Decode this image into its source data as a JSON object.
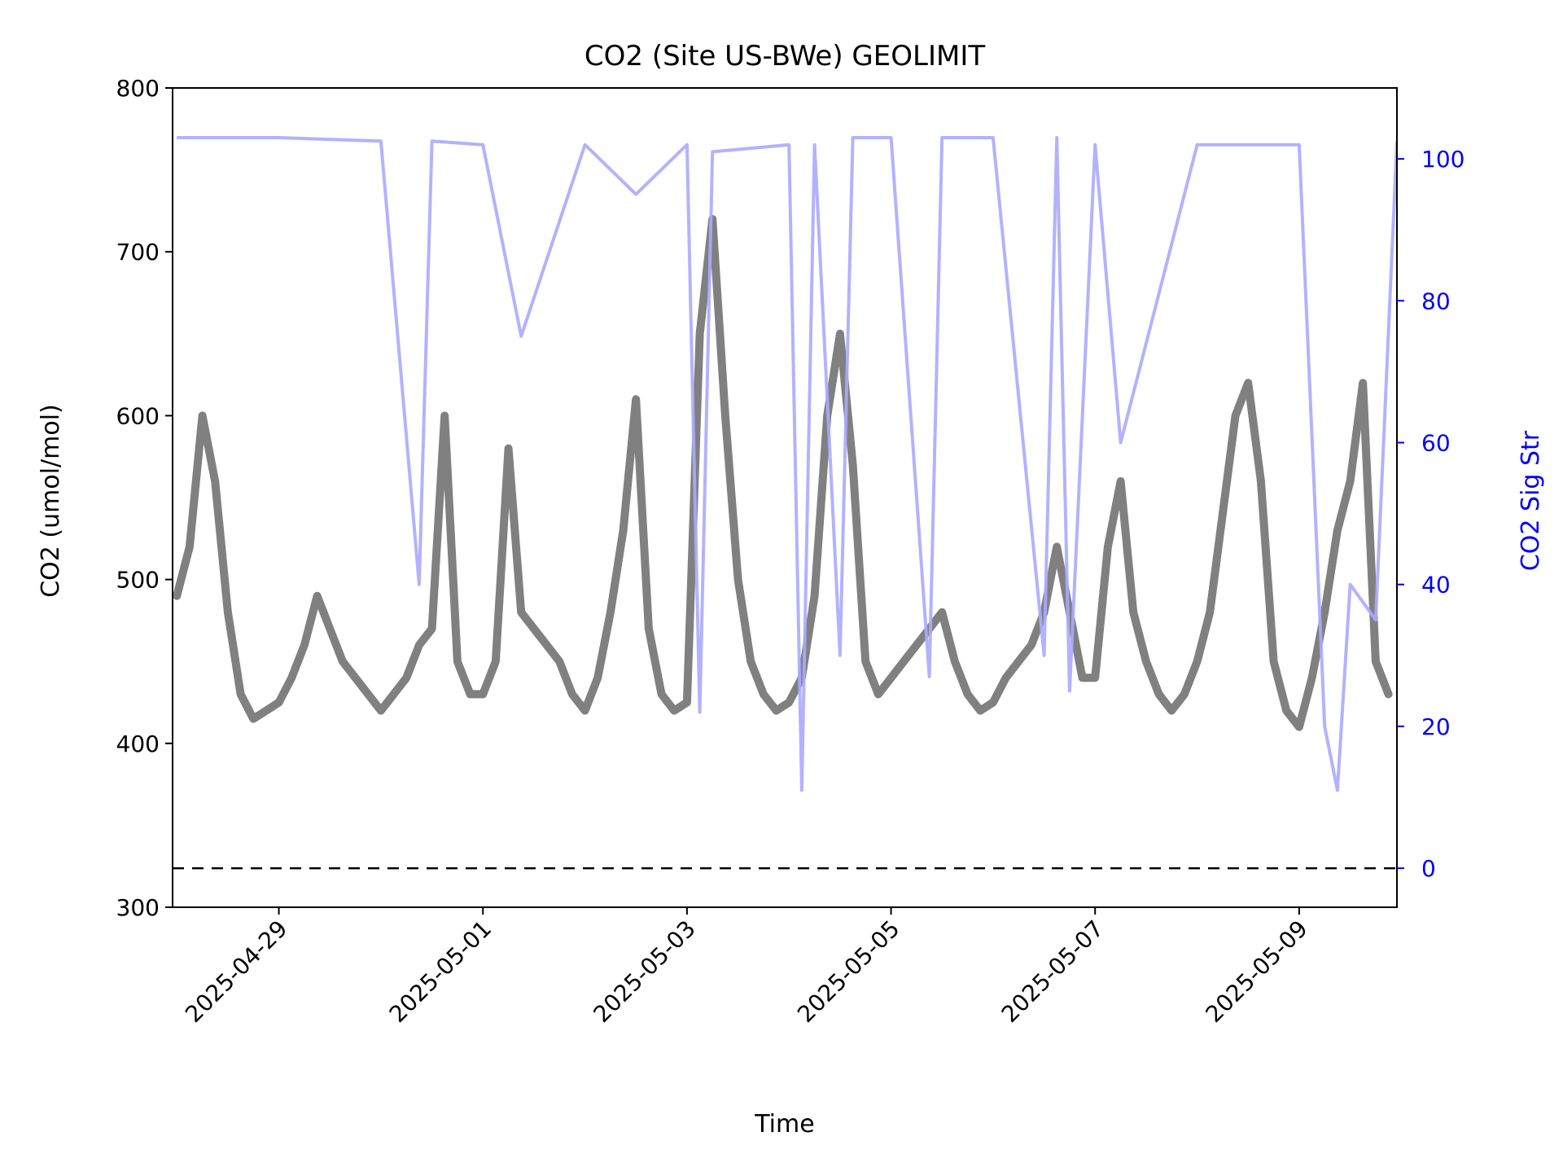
{
  "chart_data": {
    "type": "line",
    "title": "CO2 (Site US-BWe) GEOLIMIT",
    "xlabel": "Time",
    "ylabel": "CO2 (umol/mol)",
    "y2label": "CO2 Sig Str",
    "xlim": [
      "2025-04-27T23:00",
      "2025-05-09T23:00"
    ],
    "ylim": [
      300,
      800
    ],
    "y2lim": [
      -5.5,
      110
    ],
    "x_ticks": [
      "2025-04-29",
      "2025-05-01",
      "2025-05-03",
      "2025-05-05",
      "2025-05-07",
      "2025-05-09"
    ],
    "y_ticks": [
      300,
      400,
      500,
      600,
      700,
      800
    ],
    "y2_ticks": [
      0,
      20,
      40,
      60,
      80,
      100
    ],
    "grid": false,
    "legend": "none",
    "colors": {
      "co2": "#808080",
      "sig_str": "#aaaaff",
      "right_axis": "#0000ff",
      "zero_line": "#000000"
    },
    "reference_line": {
      "axis": "right",
      "y": 0,
      "style": "dashed"
    },
    "series": [
      {
        "axis": "left",
        "x": [
          "2025-04-28T00:00",
          "2025-04-28T03:00",
          "2025-04-28T06:00",
          "2025-04-28T09:00",
          "2025-04-28T12:00",
          "2025-04-28T15:00",
          "2025-04-28T18:00",
          "2025-04-28T21:00",
          "2025-04-29T00:00",
          "2025-04-29T03:00",
          "2025-04-29T06:00",
          "2025-04-29T09:00",
          "2025-04-29T12:00",
          "2025-04-29T15:00",
          "2025-04-29T18:00",
          "2025-04-29T21:00",
          "2025-04-30T00:00",
          "2025-04-30T03:00",
          "2025-04-30T06:00",
          "2025-04-30T09:00",
          "2025-04-30T12:00",
          "2025-04-30T15:00",
          "2025-04-30T18:00",
          "2025-04-30T21:00",
          "2025-05-01T00:00",
          "2025-05-01T03:00",
          "2025-05-01T06:00",
          "2025-05-01T09:00",
          "2025-05-01T12:00",
          "2025-05-01T15:00",
          "2025-05-01T18:00",
          "2025-05-01T21:00",
          "2025-05-02T00:00",
          "2025-05-02T03:00",
          "2025-05-02T06:00",
          "2025-05-02T09:00",
          "2025-05-02T12:00",
          "2025-05-02T15:00",
          "2025-05-02T18:00",
          "2025-05-02T21:00",
          "2025-05-03T00:00",
          "2025-05-03T03:00",
          "2025-05-03T06:00",
          "2025-05-03T09:00",
          "2025-05-03T12:00",
          "2025-05-03T15:00",
          "2025-05-03T18:00",
          "2025-05-03T21:00",
          "2025-05-04T00:00",
          "2025-05-04T03:00",
          "2025-05-04T06:00",
          "2025-05-04T09:00",
          "2025-05-04T12:00",
          "2025-05-04T15:00",
          "2025-05-04T18:00",
          "2025-05-04T21:00",
          "2025-05-05T00:00",
          "2025-05-05T03:00",
          "2025-05-05T06:00",
          "2025-05-05T09:00",
          "2025-05-05T12:00",
          "2025-05-05T15:00",
          "2025-05-05T18:00",
          "2025-05-05T21:00",
          "2025-05-06T00:00",
          "2025-05-06T03:00",
          "2025-05-06T06:00",
          "2025-05-06T09:00",
          "2025-05-06T12:00",
          "2025-05-06T15:00",
          "2025-05-06T18:00",
          "2025-05-06T21:00",
          "2025-05-07T00:00",
          "2025-05-07T03:00",
          "2025-05-07T06:00",
          "2025-05-07T09:00",
          "2025-05-07T12:00",
          "2025-05-07T15:00",
          "2025-05-07T18:00",
          "2025-05-07T21:00",
          "2025-05-08T00:00",
          "2025-05-08T03:00",
          "2025-05-08T06:00",
          "2025-05-08T09:00",
          "2025-05-08T12:00",
          "2025-05-08T15:00",
          "2025-05-08T18:00",
          "2025-05-08T21:00",
          "2025-05-09T00:00",
          "2025-05-09T03:00",
          "2025-05-09T06:00",
          "2025-05-09T09:00",
          "2025-05-09T12:00",
          "2025-05-09T15:00",
          "2025-05-09T18:00",
          "2025-05-09T21:00"
        ],
        "y": [
          490,
          520,
          600,
          560,
          480,
          430,
          415,
          420,
          425,
          440,
          460,
          490,
          470,
          450,
          440,
          430,
          420,
          430,
          440,
          460,
          470,
          600,
          450,
          430,
          430,
          450,
          580,
          480,
          470,
          460,
          450,
          430,
          420,
          440,
          480,
          530,
          610,
          470,
          430,
          420,
          425,
          650,
          720,
          600,
          500,
          450,
          430,
          420,
          425,
          440,
          490,
          600,
          650,
          570,
          450,
          430,
          440,
          450,
          460,
          470,
          480,
          450,
          430,
          420,
          425,
          440,
          450,
          460,
          480,
          520,
          480,
          440,
          440,
          520,
          560,
          480,
          450,
          430,
          420,
          430,
          450,
          480,
          540,
          600,
          620,
          560,
          450,
          420,
          410,
          440,
          480,
          530,
          560,
          620,
          450,
          430
        ]
      },
      {
        "axis": "right",
        "x": [
          "2025-04-28T00:00",
          "2025-04-29T00:00",
          "2025-04-30T00:00",
          "2025-04-30T09:00",
          "2025-04-30T12:00",
          "2025-05-01T00:00",
          "2025-05-01T09:00",
          "2025-05-02T00:00",
          "2025-05-02T12:00",
          "2025-05-03T00:00",
          "2025-05-03T03:00",
          "2025-05-03T06:00",
          "2025-05-04T00:00",
          "2025-05-04T03:00",
          "2025-05-04T06:00",
          "2025-05-04T12:00",
          "2025-05-04T15:00",
          "2025-05-05T00:00",
          "2025-05-05T09:00",
          "2025-05-05T12:00",
          "2025-05-06T00:00",
          "2025-05-06T12:00",
          "2025-05-06T15:00",
          "2025-05-06T18:00",
          "2025-05-07T00:00",
          "2025-05-07T06:00",
          "2025-05-08T00:00",
          "2025-05-08T12:00",
          "2025-05-09T00:00",
          "2025-05-09T06:00",
          "2025-05-09T09:00",
          "2025-05-09T12:00",
          "2025-05-09T18:00",
          "2025-05-09T23:00"
        ],
        "y": [
          103,
          103,
          102.5,
          40,
          102.5,
          102,
          75,
          102,
          95,
          102,
          22,
          101,
          102,
          11,
          102,
          30,
          103,
          103,
          27,
          103,
          103,
          30,
          103,
          25,
          102,
          60,
          102,
          102,
          102,
          20,
          11,
          40,
          35,
          102.5
        ]
      }
    ]
  }
}
